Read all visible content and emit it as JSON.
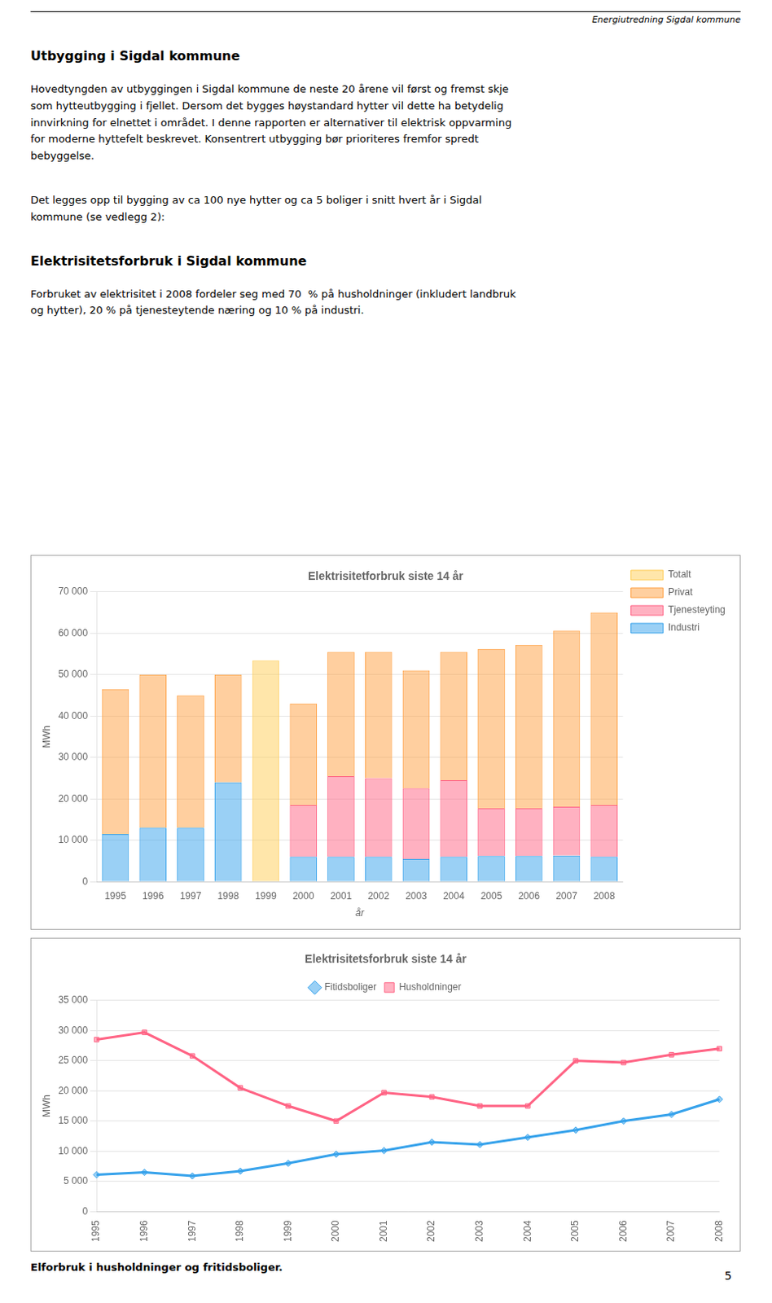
{
  "header": "Energiutredning Sigdal kommune",
  "sections": [
    {
      "heading": "Utbygging i Sigdal kommune",
      "paragraphs": [
        "Hovedtyngden av utbyggingen i Sigdal kommune de neste 20 årene vil først og fremst skje\nsom hytteutbygging i fjellet. Dersom det bygges høystandard hytter vil dette ha betydelig\ninnvirkning for elnettet i området. I denne rapporten er alternativer til elektrisk oppvarming\nfor moderne hyttefelt beskrevet. Konsentrert utbygging bør prioriteres fremfor spredt\nbebyggelse.",
        "Det legges opp til bygging av ca 100 nye hytter og ca 5 boliger i snitt hvert år i Sigdal\nkommune (se vedlegg 2):"
      ]
    },
    {
      "heading": "Elektrisitetsforbruk i Sigdal kommune",
      "paragraphs": [
        "Forbruket av elektrisitet i 2008 fordeler seg med 70  % på husholdninger (inkludert landbruk\nog hytter), 20 % på tjenesteytende næring og 10 % på industri."
      ]
    }
  ],
  "chart_data": [
    {
      "type": "bar",
      "title": "Elektrisitetforbruk siste 14 år",
      "x_label": "år",
      "y_label": "MWh",
      "stacked": true,
      "grid": true,
      "legend": "right",
      "categories": [
        "1995",
        "1996",
        "1997",
        "1998",
        "1999",
        "2000",
        "2001",
        "2002",
        "2003",
        "2004",
        "2005",
        "2006",
        "2007",
        "2008"
      ],
      "series": [
        {
          "name": "Industri",
          "values": [
            11500,
            13000,
            13000,
            24000,
            0,
            6000,
            6000,
            6000,
            5500,
            6000,
            6200,
            6200,
            6300,
            6000
          ]
        },
        {
          "name": "Tjenesteyting",
          "values": [
            0,
            0,
            0,
            0,
            0,
            12500,
            19500,
            19000,
            17000,
            18500,
            11500,
            11500,
            11800,
            12500
          ]
        },
        {
          "name": "Privat",
          "values": [
            35000,
            37000,
            32000,
            26000,
            0,
            24500,
            30000,
            30500,
            28500,
            31000,
            38500,
            39500,
            42500,
            46500
          ]
        },
        {
          "name": "Totalt",
          "values": [
            0,
            0,
            0,
            0,
            53400,
            0,
            0,
            0,
            0,
            0,
            0,
            0,
            0,
            0
          ]
        }
      ],
      "ylim": [
        0,
        70000
      ],
      "yticks": [
        0,
        {
          "value": 10000,
          "label": "10 000"
        },
        {
          "value": 20000,
          "label": "20 000"
        },
        {
          "value": 30000,
          "label": "30 000"
        },
        {
          "value": 40000,
          "label": "40 000"
        },
        {
          "value": 50000,
          "label": "50 000"
        },
        {
          "value": 60000,
          "label": "60 000"
        },
        {
          "value": 70000,
          "label": "70 000"
        }
      ]
    },
    {
      "type": "line",
      "title": "Elektrisitetsforbruk siste 14 år",
      "y_label": "MWh",
      "grid": true,
      "legend": "top",
      "categories": [
        "1995",
        "1996",
        "1997",
        "1998",
        "1999",
        "2000",
        "2001",
        "2002",
        "2003",
        "2004",
        "2005",
        "2006",
        "2007",
        "2008"
      ],
      "series": [
        {
          "name": "Fitidsboliger",
          "marker": "diamond",
          "line_style": "solid",
          "values": [
            6100,
            6500,
            5900,
            6700,
            8000,
            9500,
            10100,
            11500,
            11100,
            12300,
            13500,
            15000,
            16100,
            18600
          ]
        },
        {
          "name": "Husholdninger",
          "marker": "square",
          "line_style": "solid",
          "values": [
            28500,
            29700,
            25800,
            20500,
            17500,
            15000,
            19700,
            19000,
            17500,
            17500,
            25000,
            24700,
            26000,
            27000
          ]
        }
      ],
      "ylim": [
        0,
        35000
      ],
      "yticks": [
        0,
        {
          "value": 5000,
          "label": "5 000"
        },
        {
          "value": 10000,
          "label": "10 000"
        },
        {
          "value": 15000,
          "label": "15 000"
        },
        {
          "value": 20000,
          "label": "20 000"
        },
        {
          "value": 25000,
          "label": "25 000"
        },
        {
          "value": 30000,
          "label": "30 000"
        },
        {
          "value": 35000,
          "label": "35 000"
        }
      ]
    }
  ],
  "footer": "Elforbruk i husholdninger og fritidsboliger.",
  "page_number": "5"
}
